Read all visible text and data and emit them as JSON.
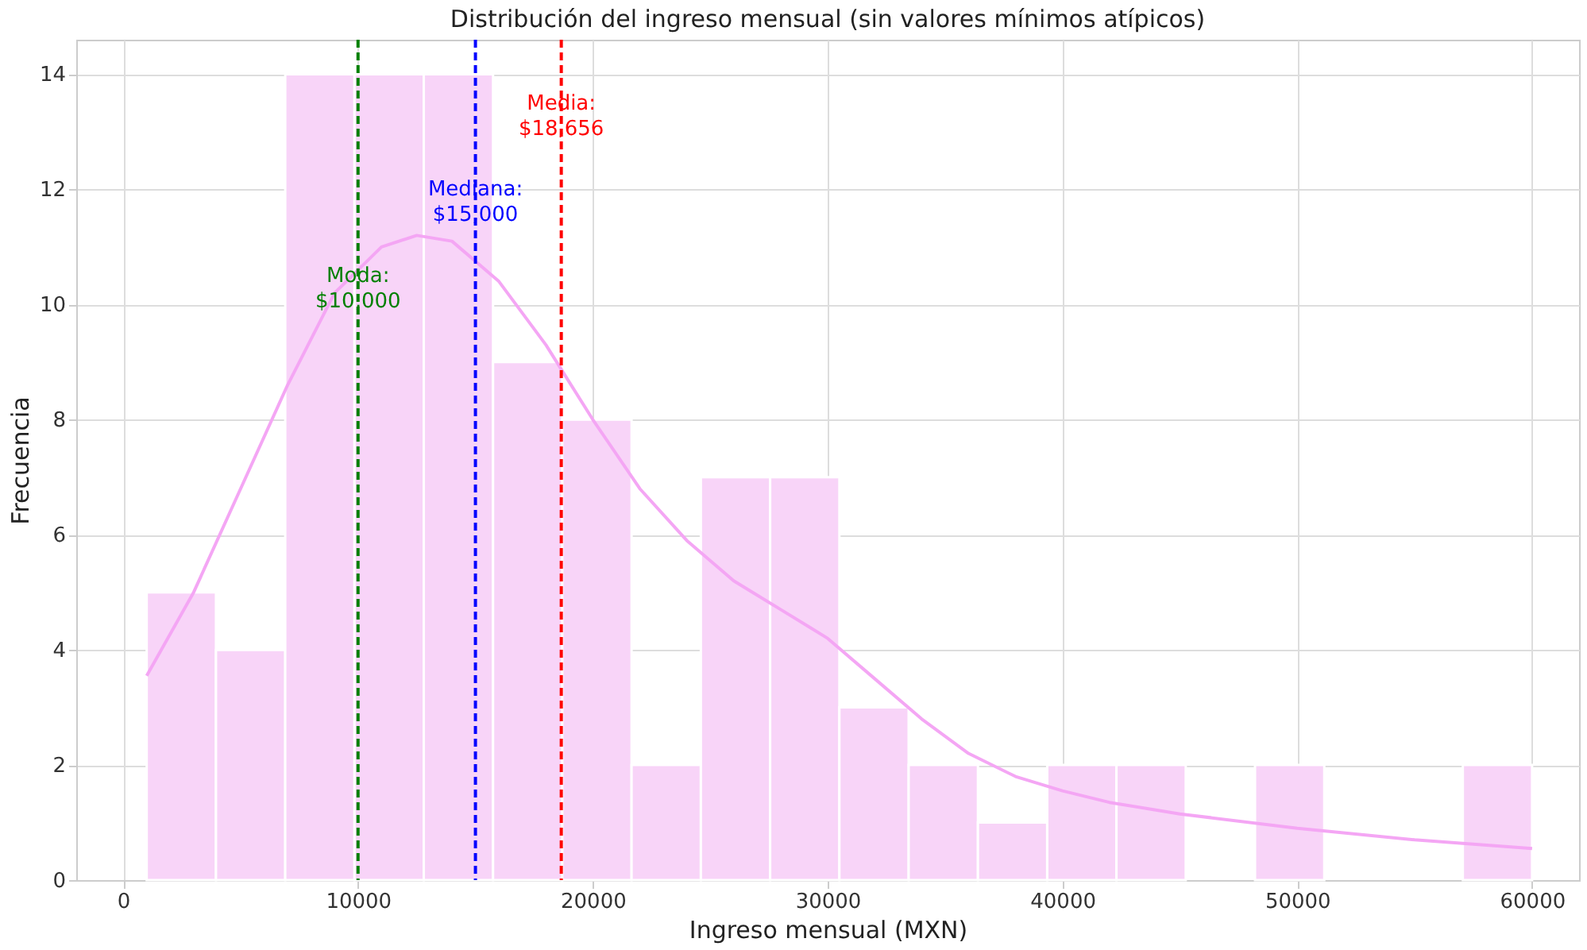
{
  "chart_data": {
    "type": "histogram",
    "title": "Distribución del ingreso mensual (sin valores mínimos atípicos)",
    "xlabel": "Ingreso mensual (MXN)",
    "ylabel": "Frecuencia",
    "bins": [
      1000,
      3950,
      6900,
      9850,
      12800,
      15750,
      18700,
      21650,
      24600,
      27550,
      30500,
      33450,
      36400,
      39350,
      42300,
      45250,
      48200,
      51150,
      54100,
      57050,
      60000
    ],
    "values": [
      5,
      4,
      14,
      14,
      14,
      9,
      8,
      2,
      7,
      7,
      3,
      2,
      1,
      2,
      2,
      0,
      2,
      0,
      0,
      2
    ],
    "color": "#f8d4f8",
    "series": [
      {
        "type": "line",
        "color": "#f4a6f4",
        "x": [
          1000,
          3000,
          5000,
          7000,
          9000,
          11000,
          12500,
          14000,
          16000,
          18000,
          20000,
          22000,
          24000,
          26000,
          28000,
          30000,
          32000,
          34000,
          36000,
          38000,
          40000,
          42000,
          45000,
          50000,
          55000,
          60000
        ],
        "values": [
          3.55,
          5.0,
          6.8,
          8.6,
          10.2,
          11.0,
          11.2,
          11.1,
          10.4,
          9.3,
          8.0,
          6.8,
          5.9,
          5.2,
          4.7,
          4.2,
          3.5,
          2.8,
          2.2,
          1.8,
          1.55,
          1.35,
          1.15,
          0.9,
          0.7,
          0.55
        ]
      }
    ],
    "ref_lines": [
      {
        "axis": "x",
        "value": 10000,
        "label": "Moda:\n$10,000",
        "color": "#008000",
        "line_style": "dashed"
      },
      {
        "axis": "x",
        "value": 15000,
        "label": "Mediana:\n$15,000",
        "color": "#0000ff",
        "line_style": "dashed"
      },
      {
        "axis": "x",
        "value": 18656,
        "label": "Media:\n$18,656",
        "color": "#ff0000",
        "line_style": "dashed"
      }
    ],
    "xlim": [
      -2000,
      62000
    ],
    "xticks": [
      0,
      10000,
      20000,
      30000,
      40000,
      50000,
      60000
    ],
    "ylim": [
      0,
      14.6
    ],
    "yticks": [
      0,
      2,
      4,
      6,
      8,
      10,
      12,
      14
    ],
    "grid": true
  }
}
